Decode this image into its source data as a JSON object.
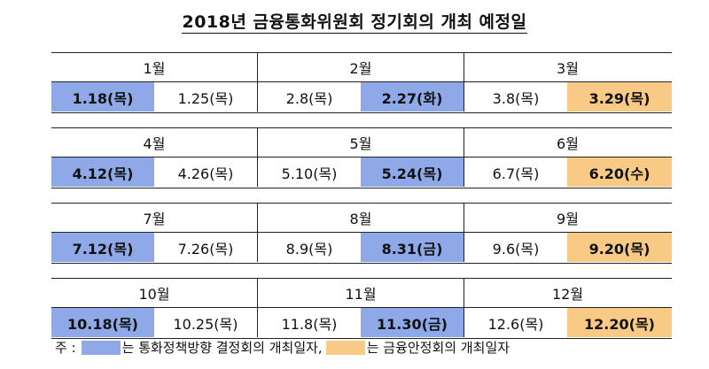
{
  "title": "2018년 금융통화위원회 정기회의 개최 예정일",
  "colors": {
    "monetary_policy": "#8fa9e8",
    "financial_stability": "#f9ca86"
  },
  "rows": [
    {
      "months": [
        "1월",
        "2월",
        "3월"
      ],
      "dates": [
        {
          "text": "1.18(목)",
          "type": "mp"
        },
        {
          "text": "1.25(목)",
          "type": ""
        },
        {
          "text": "2.8(목)",
          "type": ""
        },
        {
          "text": "2.27(화)",
          "type": "mp"
        },
        {
          "text": "3.8(목)",
          "type": ""
        },
        {
          "text": "3.29(목)",
          "type": "fs"
        }
      ]
    },
    {
      "months": [
        "4월",
        "5월",
        "6월"
      ],
      "dates": [
        {
          "text": "4.12(목)",
          "type": "mp"
        },
        {
          "text": "4.26(목)",
          "type": ""
        },
        {
          "text": "5.10(목)",
          "type": ""
        },
        {
          "text": "5.24(목)",
          "type": "mp"
        },
        {
          "text": "6.7(목)",
          "type": ""
        },
        {
          "text": "6.20(수)",
          "type": "fs"
        }
      ]
    },
    {
      "months": [
        "7월",
        "8월",
        "9월"
      ],
      "dates": [
        {
          "text": "7.12(목)",
          "type": "mp"
        },
        {
          "text": "7.26(목)",
          "type": ""
        },
        {
          "text": "8.9(목)",
          "type": ""
        },
        {
          "text": "8.31(금)",
          "type": "mp"
        },
        {
          "text": "9.6(목)",
          "type": ""
        },
        {
          "text": "9.20(목)",
          "type": "fs"
        }
      ]
    },
    {
      "months": [
        "10월",
        "11월",
        "12월"
      ],
      "dates": [
        {
          "text": "10.18(목)",
          "type": "mp"
        },
        {
          "text": "10.25(목)",
          "type": ""
        },
        {
          "text": "11.8(목)",
          "type": ""
        },
        {
          "text": "11.30(금)",
          "type": "mp"
        },
        {
          "text": "12.6(목)",
          "type": ""
        },
        {
          "text": "12.20(목)",
          "type": "fs"
        }
      ]
    }
  ],
  "legend": {
    "prefix": "주 :",
    "mp_text": "는 통화정책방향 결정회의 개최일자,",
    "fs_text": "는 금융안정회의 개최일자"
  }
}
